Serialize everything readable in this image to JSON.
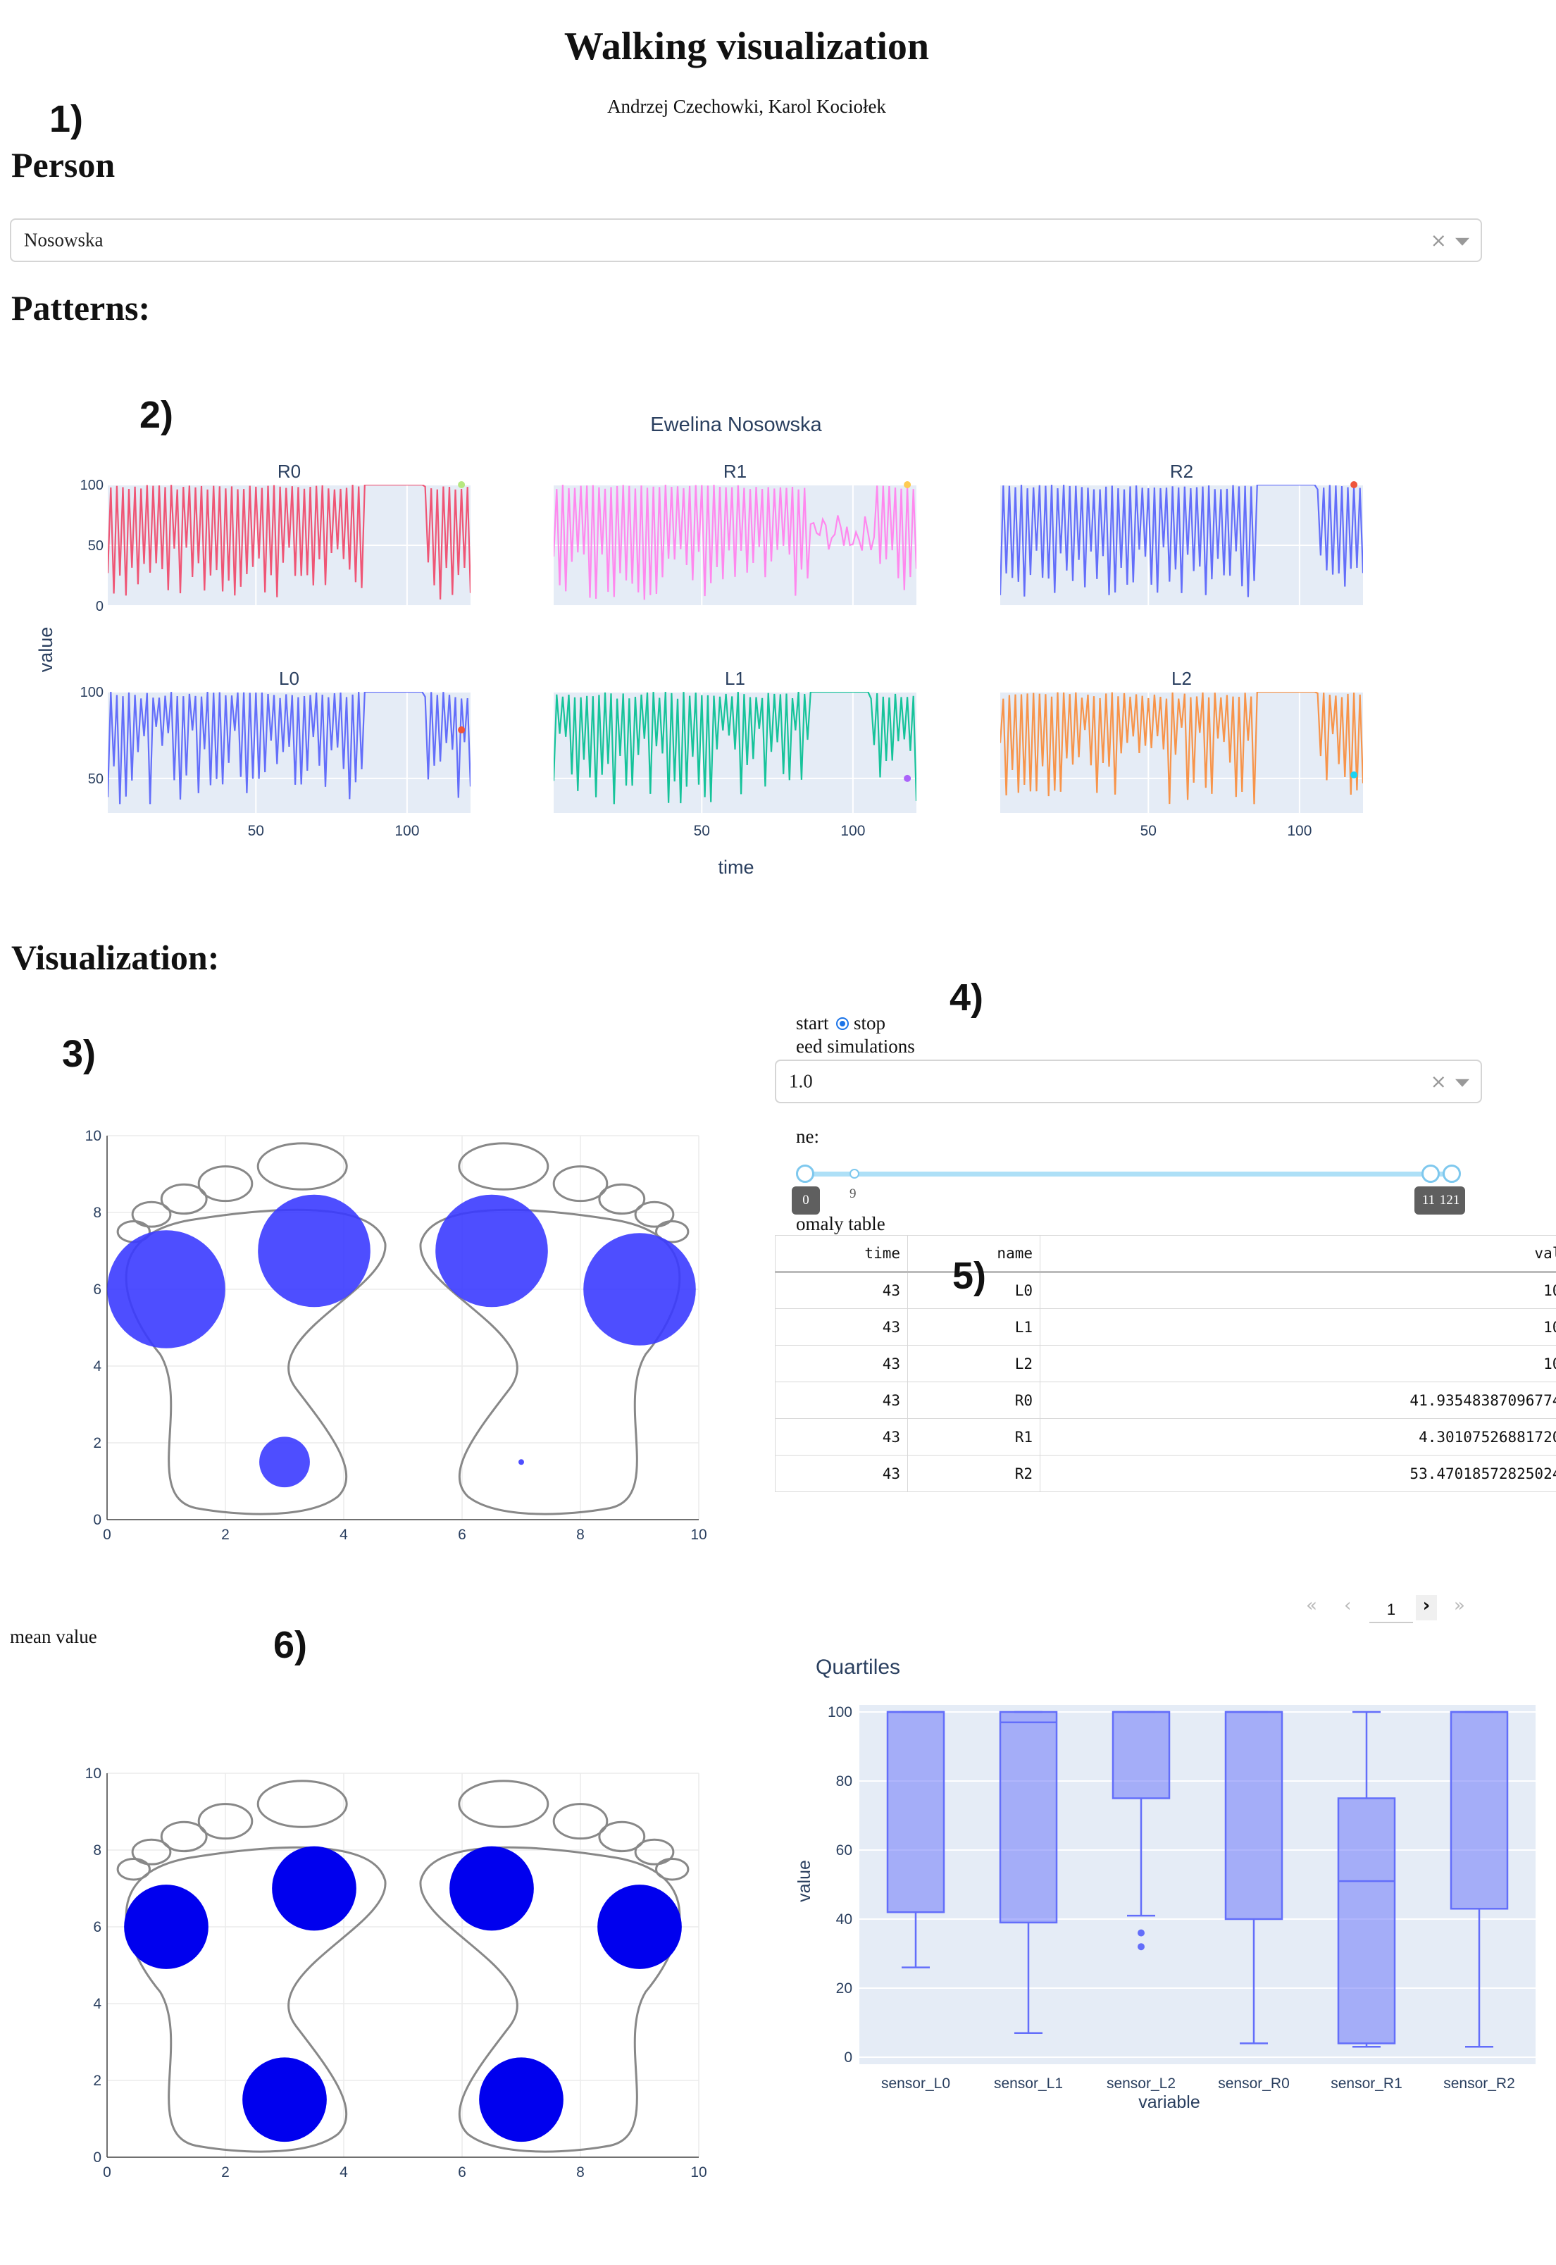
{
  "page": {
    "title": "Walking visualization",
    "authors": "Andrzej Czechowki, Karol Kociołek"
  },
  "annotations": [
    "1)",
    "2)",
    "3)",
    "4)",
    "5)",
    "6)"
  ],
  "person": {
    "heading": "Person",
    "selected": "Nosowska",
    "clear_glyph": "×"
  },
  "patterns": {
    "heading": "Patterns:",
    "chart_title": "Ewelina Nosowska",
    "x_label": "time",
    "y_label": "value"
  },
  "visualization": {
    "heading": "Visualization:",
    "radio": {
      "start_label": "start",
      "stop_label": "stop",
      "selected": "stop"
    },
    "speed_label": "eed simulations",
    "speed_value": "1.0",
    "time_label": "ne:",
    "slider": {
      "min_label": "0",
      "mark_label": "9",
      "max_label": "121",
      "value_label": "11",
      "range": [
        0,
        121
      ],
      "handle_low": 0,
      "handle_high": 119
    },
    "anomaly_label": "omaly table",
    "mean_label": "mean value"
  },
  "anomaly_table": {
    "columns": [
      "time",
      "name",
      "valu"
    ],
    "rows": [
      [
        "43",
        "L0",
        "10("
      ],
      [
        "43",
        "L1",
        "10("
      ],
      [
        "43",
        "L2",
        "10("
      ],
      [
        "43",
        "R0",
        "41.935483870967744"
      ],
      [
        "43",
        "R1",
        "4.301075268817205"
      ],
      [
        "43",
        "R2",
        "53.470185728250248"
      ]
    ]
  },
  "pagination": {
    "first": "«",
    "prev": "‹",
    "page": "1",
    "next": "›",
    "last": "»"
  },
  "colors": {
    "plot_bg": "#e5ecf6",
    "R0": "#ef5575",
    "R1": "#ff88ee",
    "R2": "#636efa",
    "L0": "#636efa",
    "L1": "#16c39a",
    "L2": "#f7944a",
    "circle_live": "#3b3bff",
    "circle_mean": "#0000ee",
    "box": "#636efa",
    "foot_outline": "#888888"
  },
  "chart_data": [
    {
      "type": "line",
      "title": "Ewelina Nosowska",
      "xlabel": "time",
      "ylabel": "value",
      "x_ticks": [
        50,
        100
      ],
      "y_ticks": [
        0,
        50,
        100
      ],
      "panels": [
        {
          "name": "R0",
          "x_range": [
            1,
            121
          ],
          "y_range": [
            0,
            100
          ],
          "marker": {
            "x": 118,
            "y": 100,
            "color": "#b6e880"
          }
        },
        {
          "name": "R1",
          "x_range": [
            1,
            121
          ],
          "y_range": [
            0,
            100
          ],
          "marker": {
            "x": 118,
            "y": 100,
            "color": "#fecb52"
          }
        },
        {
          "name": "R2",
          "x_range": [
            1,
            121
          ],
          "y_range": [
            0,
            100
          ],
          "marker": {
            "x": 118,
            "y": 100,
            "color": "#ef553b"
          }
        },
        {
          "name": "L0",
          "x_range": [
            1,
            121
          ],
          "y_range": [
            30,
            100
          ],
          "marker": {
            "x": 118,
            "y": 78,
            "color": "#ef553b"
          }
        },
        {
          "name": "L1",
          "x_range": [
            1,
            121
          ],
          "y_range": [
            30,
            100
          ],
          "marker": {
            "x": 118,
            "y": 50,
            "color": "#ab63fa"
          }
        },
        {
          "name": "L2",
          "x_range": [
            1,
            121
          ],
          "y_range": [
            30,
            100
          ],
          "marker": {
            "x": 118,
            "y": 52,
            "color": "#19d3f3"
          }
        }
      ]
    },
    {
      "type": "scatter",
      "name": "live",
      "x_range": [
        0,
        10
      ],
      "y_range": [
        0,
        10
      ],
      "x_ticks": [
        0,
        2,
        4,
        6,
        8,
        10
      ],
      "y_ticks": [
        0,
        2,
        4,
        6,
        8,
        10
      ],
      "points": [
        {
          "name": "L0",
          "x": 1.0,
          "y": 6.0,
          "r": 1.05
        },
        {
          "name": "L1",
          "x": 3.5,
          "y": 7.0,
          "r": 1.0
        },
        {
          "name": "L2",
          "x": 3.0,
          "y": 1.5,
          "r": 0.45
        },
        {
          "name": "R0",
          "x": 6.5,
          "y": 7.0,
          "r": 1.0
        },
        {
          "name": "R1",
          "x": 9.0,
          "y": 6.0,
          "r": 1.0
        },
        {
          "name": "R2",
          "x": 7.0,
          "y": 1.5,
          "r": 0.05
        }
      ]
    },
    {
      "type": "scatter",
      "name": "mean",
      "x_range": [
        0,
        10
      ],
      "y_range": [
        0,
        10
      ],
      "x_ticks": [
        0,
        2,
        4,
        6,
        8,
        10
      ],
      "y_ticks": [
        0,
        2,
        4,
        6,
        8,
        10
      ],
      "points": [
        {
          "name": "L0",
          "x": 1.0,
          "y": 6.0,
          "r": 0.75
        },
        {
          "name": "L1",
          "x": 3.5,
          "y": 7.0,
          "r": 0.75
        },
        {
          "name": "L2",
          "x": 3.0,
          "y": 1.5,
          "r": 0.75
        },
        {
          "name": "R0",
          "x": 6.5,
          "y": 7.0,
          "r": 0.75
        },
        {
          "name": "R1",
          "x": 9.0,
          "y": 6.0,
          "r": 0.75
        },
        {
          "name": "R2",
          "x": 7.0,
          "y": 1.5,
          "r": 0.75
        }
      ]
    },
    {
      "type": "box",
      "title": "Quartiles",
      "xlabel": "variable",
      "ylabel": "value",
      "ylim": [
        0,
        100
      ],
      "y_ticks": [
        0,
        20,
        40,
        60,
        80,
        100
      ],
      "categories": [
        "sensor_L0",
        "sensor_L1",
        "sensor_L2",
        "sensor_R0",
        "sensor_R1",
        "sensor_R2"
      ],
      "boxes": [
        {
          "min": 26,
          "q1": 42,
          "median": 100,
          "q3": 100,
          "max": 100,
          "outliers": []
        },
        {
          "min": 7,
          "q1": 39,
          "median": 97,
          "q3": 100,
          "max": 100,
          "outliers": []
        },
        {
          "min": 41,
          "q1": 75,
          "median": 100,
          "q3": 100,
          "max": 100,
          "outliers": [
            36,
            32
          ]
        },
        {
          "min": 4,
          "q1": 40,
          "median": 100,
          "q3": 100,
          "max": 100,
          "outliers": []
        },
        {
          "min": 3,
          "q1": 4,
          "median": 51,
          "q3": 75,
          "max": 100,
          "outliers": []
        },
        {
          "min": 3,
          "q1": 43,
          "median": 100,
          "q3": 100,
          "max": 100,
          "outliers": []
        }
      ]
    }
  ]
}
